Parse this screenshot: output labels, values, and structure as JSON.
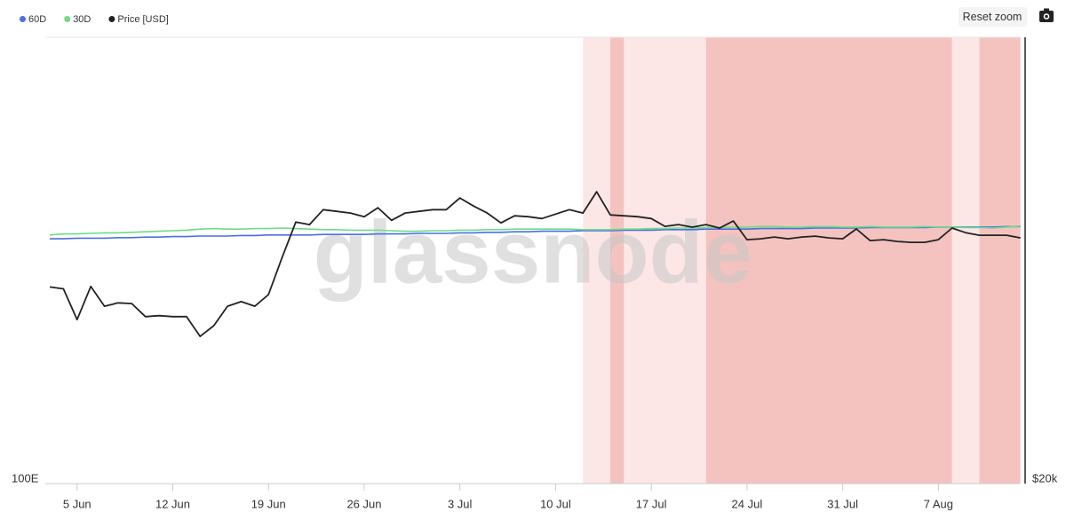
{
  "chart_data": {
    "type": "line",
    "watermark": "glassnode",
    "reset_zoom_label": "Reset zoom",
    "x": [
      "3 Jun",
      "4 Jun",
      "5 Jun",
      "6 Jun",
      "7 Jun",
      "8 Jun",
      "9 Jun",
      "10 Jun",
      "11 Jun",
      "12 Jun",
      "13 Jun",
      "14 Jun",
      "15 Jun",
      "16 Jun",
      "17 Jun",
      "18 Jun",
      "19 Jun",
      "20 Jun",
      "21 Jun",
      "22 Jun",
      "23 Jun",
      "24 Jun",
      "25 Jun",
      "26 Jun",
      "27 Jun",
      "28 Jun",
      "29 Jun",
      "30 Jun",
      "1 Jul",
      "2 Jul",
      "3 Jul",
      "4 Jul",
      "5 Jul",
      "6 Jul",
      "7 Jul",
      "8 Jul",
      "9 Jul",
      "10 Jul",
      "11 Jul",
      "12 Jul",
      "13 Jul",
      "14 Jul",
      "15 Jul",
      "16 Jul",
      "17 Jul",
      "18 Jul",
      "19 Jul",
      "20 Jul",
      "21 Jul",
      "22 Jul",
      "23 Jul",
      "24 Jul",
      "25 Jul",
      "26 Jul",
      "27 Jul",
      "28 Jul",
      "29 Jul",
      "30 Jul",
      "31 Jul",
      "1 Aug",
      "2 Aug",
      "3 Aug",
      "4 Aug",
      "5 Aug",
      "6 Aug",
      "7 Aug",
      "8 Aug",
      "9 Aug",
      "10 Aug",
      "11 Aug",
      "12 Aug",
      "13 Aug"
    ],
    "xticks": [
      "5 Jun",
      "12 Jun",
      "19 Jun",
      "26 Jun",
      "3 Jul",
      "10 Jul",
      "17 Jul",
      "24 Jul",
      "31 Jul",
      "7 Aug"
    ],
    "log_scale": true,
    "ylim": [
      100,
      1000
    ],
    "yticks": [
      {
        "value": 100,
        "label": "100E"
      }
    ],
    "y2lim": [
      20000,
      39800
    ],
    "y2ticks": [
      {
        "value": 20000,
        "label": "$20k"
      }
    ],
    "regions": [
      {
        "from": "12 Jul",
        "to": "14 Jul",
        "color": "#fde6e6"
      },
      {
        "from": "14 Jul",
        "to": "15 Jul",
        "color": "#f4c3bf"
      },
      {
        "from": "15 Jul",
        "to": "21 Jul",
        "color": "#fde6e6"
      },
      {
        "from": "21 Jul",
        "to": "8 Aug",
        "color": "#f4c3bf"
      },
      {
        "from": "8 Aug",
        "to": "10 Aug",
        "color": "#fde6e6"
      },
      {
        "from": "10 Aug",
        "to": "13 Aug",
        "color": "#f4c3bf"
      }
    ],
    "series": [
      {
        "name": "60D",
        "color": "#4a6fe3",
        "values": [
          350,
          350,
          351,
          351,
          351,
          352,
          352,
          353,
          353,
          354,
          354,
          355,
          355,
          355,
          356,
          356,
          357,
          357,
          357,
          357,
          358,
          358,
          358,
          358,
          359,
          359,
          359,
          360,
          360,
          360,
          361,
          361,
          362,
          362,
          363,
          363,
          364,
          364,
          364,
          365,
          365,
          365,
          366,
          366,
          366,
          367,
          367,
          367,
          368,
          368,
          368,
          368,
          369,
          369,
          369,
          369,
          370,
          370,
          370,
          370,
          371,
          371,
          371,
          371,
          371,
          372,
          372,
          372,
          372,
          372,
          373,
          373
        ]
      },
      {
        "name": "30D",
        "color": "#6ddc86",
        "values": [
          357,
          359,
          359,
          360,
          361,
          361,
          362,
          363,
          364,
          365,
          366,
          368,
          369,
          368,
          368,
          369,
          369,
          370,
          369,
          368,
          367,
          367,
          366,
          366,
          366,
          365,
          364,
          364,
          365,
          365,
          366,
          366,
          367,
          367,
          368,
          368,
          368,
          368,
          368,
          367,
          367,
          367,
          368,
          368,
          369,
          369,
          370,
          370,
          371,
          371,
          372,
          372,
          373,
          373,
          372,
          372,
          373,
          373,
          372,
          372,
          373,
          372,
          372,
          372,
          373,
          372,
          372,
          371,
          371,
          370,
          372,
          374
        ]
      },
      {
        "name": "Price [USD]",
        "color": "#222222",
        "axis": "y2",
        "values": [
          26980,
          26900,
          25640,
          27000,
          26180,
          26320,
          26290,
          25760,
          25800,
          25760,
          25760,
          24980,
          25400,
          26180,
          26370,
          26180,
          26660,
          28250,
          29850,
          29730,
          30430,
          30350,
          30270,
          30100,
          30520,
          29930,
          30270,
          30350,
          30430,
          30430,
          30990,
          30600,
          30270,
          29810,
          30140,
          30100,
          30010,
          30220,
          30430,
          30270,
          31290,
          30180,
          30140,
          30100,
          30010,
          29650,
          29730,
          29610,
          29730,
          29570,
          29900,
          29040,
          29080,
          29160,
          29080,
          29160,
          29200,
          29120,
          29080,
          29530,
          29000,
          29040,
          28960,
          28920,
          28920,
          29040,
          29570,
          29360,
          29240,
          29240,
          29240,
          29120
        ]
      }
    ]
  }
}
